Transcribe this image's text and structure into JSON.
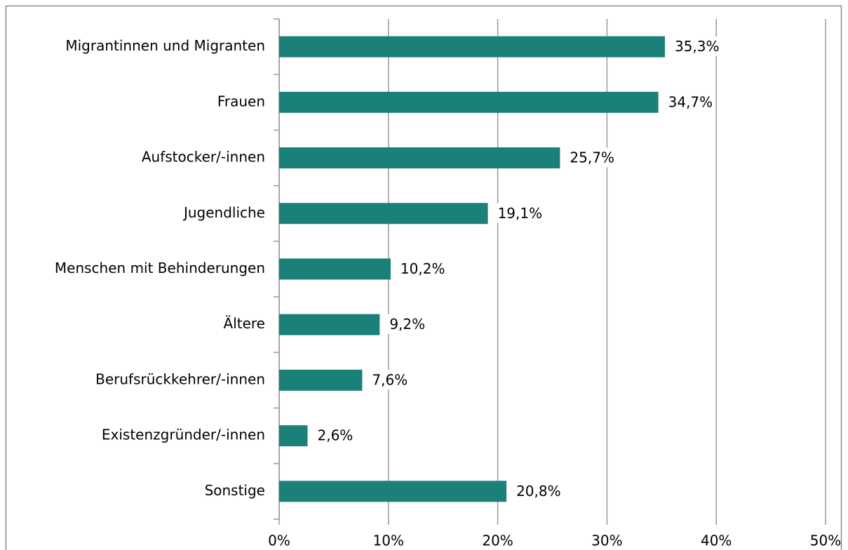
{
  "chart_data": {
    "type": "hbar",
    "categories": [
      "Migrantinnen und Migranten",
      "Frauen",
      "Aufstocker/-innen",
      "Jugendliche",
      "Menschen mit Behinderungen",
      "Ältere",
      "Berufsrückkehrer/-innen",
      "Existenzgründer/-innen",
      "Sonstige"
    ],
    "values": [
      35.3,
      34.7,
      25.7,
      19.1,
      10.2,
      9.2,
      7.6,
      2.6,
      20.8
    ],
    "value_labels": [
      "35,3%",
      "34,7%",
      "25,7%",
      "19,1%",
      "10,2%",
      "9,2%",
      "7,6%",
      "2,6%",
      "20,8%"
    ],
    "color": "#1a8078",
    "xlim": [
      0,
      50
    ],
    "xticks": [
      {
        "value": 0,
        "label": "0%"
      },
      {
        "value": 10,
        "label": "10%"
      },
      {
        "value": 20,
        "label": "20%"
      },
      {
        "value": 30,
        "label": "30%"
      },
      {
        "value": 40,
        "label": "40%"
      },
      {
        "value": 50,
        "label": "50%"
      }
    ],
    "grid": true
  }
}
